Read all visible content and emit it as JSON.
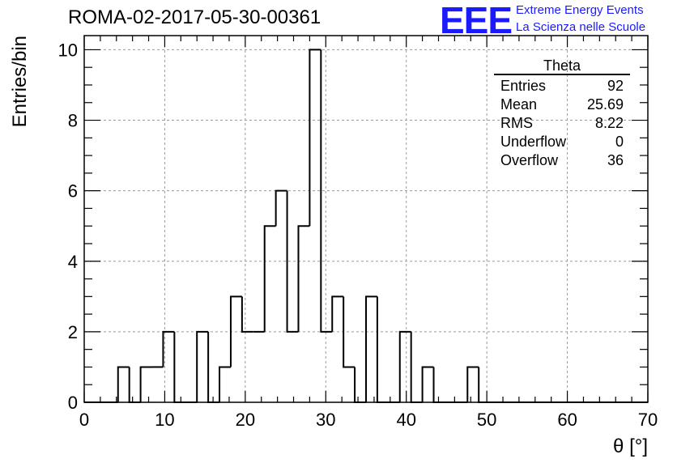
{
  "title": "ROMA-02-2017-05-30-00361",
  "logo": {
    "text": "EEE",
    "line1": "Extreme Energy Events",
    "line2": "La Scienza nelle Scuole",
    "color": "#1a1aff"
  },
  "stats": {
    "title": "Theta",
    "rows": [
      {
        "label": "Entries",
        "value": "92"
      },
      {
        "label": "Mean",
        "value": "25.69"
      },
      {
        "label": "RMS",
        "value": "8.22"
      },
      {
        "label": "Underflow",
        "value": "0"
      },
      {
        "label": "Overflow",
        "value": "36"
      }
    ]
  },
  "chart_data": {
    "type": "histogram",
    "title": "ROMA-02-2017-05-30-00361",
    "xlabel": "θ [°]",
    "ylabel": "Entries/bin",
    "xlim": [
      0,
      70
    ],
    "ylim": [
      0,
      10.4
    ],
    "bin_width": 1.4,
    "bin_edges_start": 0,
    "x_ticks": [
      0,
      10,
      20,
      30,
      40,
      50,
      60,
      70
    ],
    "y_ticks": [
      0,
      2,
      4,
      6,
      8,
      10
    ],
    "grid": true,
    "line_color": "#000000",
    "grid_color": "#9a9a9a",
    "values": [
      0,
      0,
      0,
      1,
      0,
      1,
      1,
      2,
      0,
      0,
      2,
      0,
      1,
      3,
      2,
      2,
      5,
      6,
      2,
      5,
      10,
      2,
      3,
      1,
      0,
      3,
      0,
      0,
      2,
      0,
      1,
      0,
      0,
      0,
      1,
      0,
      0,
      0,
      0,
      0,
      0,
      0,
      0,
      0,
      0,
      0,
      0,
      0,
      0,
      0
    ]
  }
}
